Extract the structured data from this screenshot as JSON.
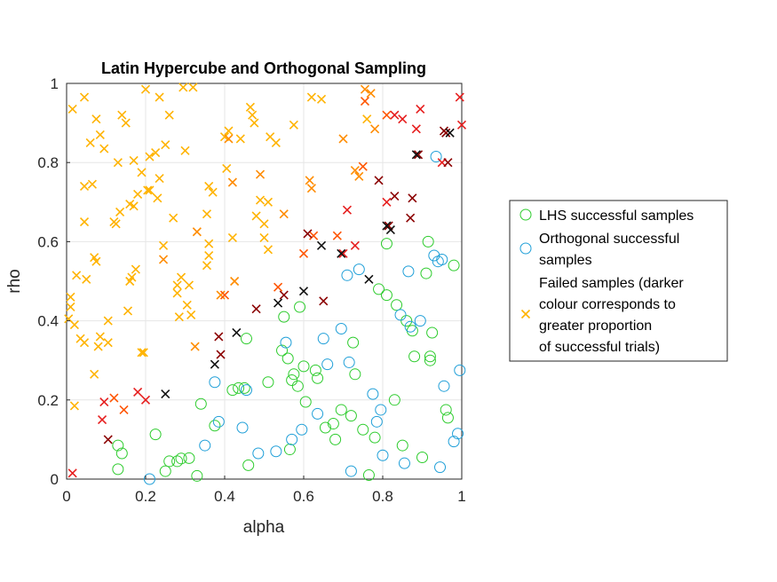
{
  "chart_data": {
    "type": "scatter",
    "title": "Latin Hypercube and Orthogonal Sampling",
    "xlabel": "alpha",
    "ylabel": "rho",
    "xlim": [
      0,
      1
    ],
    "ylim": [
      0,
      1
    ],
    "xticks": [
      0,
      0.2,
      0.4,
      0.6,
      0.8,
      1
    ],
    "yticks": [
      0,
      0.2,
      0.4,
      0.6,
      0.8,
      1
    ],
    "xtick_labels": [
      "0",
      "0.2",
      "0.4",
      "0.6",
      "0.8",
      "1"
    ],
    "ytick_labels": [
      "0",
      "0.2",
      "0.4",
      "0.6",
      "0.8",
      "1"
    ],
    "grid": true,
    "legend_position": "right",
    "legend": [
      {
        "label_lines": [
          "LHS successful samples"
        ],
        "marker": "circle",
        "color": "#2ecc2e"
      },
      {
        "label_lines": [
          "Orthogonal successful",
          "samples"
        ],
        "marker": "circle",
        "color": "#1f9fd8"
      },
      {
        "label_lines": [
          "Failed samples (darker",
          "colour corresponds to",
          "greater proportion",
          "of successful trials)"
        ],
        "marker": "x",
        "color": "#ffb300"
      }
    ],
    "series": [
      {
        "name": "LHS successful samples",
        "marker": "circle",
        "color": "#2ecc2e",
        "points": [
          [
            0.13,
            0.085
          ],
          [
            0.14,
            0.065
          ],
          [
            0.13,
            0.025
          ],
          [
            0.225,
            0.113
          ],
          [
            0.26,
            0.045
          ],
          [
            0.25,
            0.02
          ],
          [
            0.28,
            0.045
          ],
          [
            0.29,
            0.052
          ],
          [
            0.31,
            0.053
          ],
          [
            0.33,
            0.008
          ],
          [
            0.34,
            0.19
          ],
          [
            0.375,
            0.135
          ],
          [
            0.42,
            0.225
          ],
          [
            0.435,
            0.23
          ],
          [
            0.45,
            0.23
          ],
          [
            0.455,
            0.355
          ],
          [
            0.46,
            0.035
          ],
          [
            0.51,
            0.245
          ],
          [
            0.545,
            0.325
          ],
          [
            0.55,
            0.41
          ],
          [
            0.56,
            0.305
          ],
          [
            0.565,
            0.075
          ],
          [
            0.57,
            0.25
          ],
          [
            0.575,
            0.265
          ],
          [
            0.585,
            0.235
          ],
          [
            0.59,
            0.435
          ],
          [
            0.6,
            0.285
          ],
          [
            0.605,
            0.195
          ],
          [
            0.63,
            0.275
          ],
          [
            0.635,
            0.255
          ],
          [
            0.655,
            0.13
          ],
          [
            0.675,
            0.14
          ],
          [
            0.68,
            0.1
          ],
          [
            0.695,
            0.175
          ],
          [
            0.72,
            0.16
          ],
          [
            0.725,
            0.345
          ],
          [
            0.73,
            0.265
          ],
          [
            0.75,
            0.125
          ],
          [
            0.765,
            0.01
          ],
          [
            0.78,
            0.105
          ],
          [
            0.79,
            0.48
          ],
          [
            0.81,
            0.595
          ],
          [
            0.81,
            0.465
          ],
          [
            0.83,
            0.2
          ],
          [
            0.835,
            0.44
          ],
          [
            0.85,
            0.085
          ],
          [
            0.86,
            0.4
          ],
          [
            0.875,
            0.375
          ],
          [
            0.88,
            0.31
          ],
          [
            0.9,
            0.055
          ],
          [
            0.91,
            0.52
          ],
          [
            0.915,
            0.6
          ],
          [
            0.92,
            0.3
          ],
          [
            0.92,
            0.31
          ],
          [
            0.925,
            0.37
          ],
          [
            0.96,
            0.175
          ],
          [
            0.965,
            0.155
          ],
          [
            0.98,
            0.54
          ]
        ]
      },
      {
        "name": "Orthogonal successful samples",
        "marker": "circle",
        "color": "#1f9fd8",
        "points": [
          [
            0.21,
            0.0
          ],
          [
            0.35,
            0.085
          ],
          [
            0.375,
            0.245
          ],
          [
            0.385,
            0.145
          ],
          [
            0.445,
            0.13
          ],
          [
            0.455,
            0.225
          ],
          [
            0.485,
            0.065
          ],
          [
            0.53,
            0.07
          ],
          [
            0.555,
            0.345
          ],
          [
            0.57,
            0.1
          ],
          [
            0.595,
            0.125
          ],
          [
            0.635,
            0.165
          ],
          [
            0.65,
            0.355
          ],
          [
            0.66,
            0.29
          ],
          [
            0.695,
            0.38
          ],
          [
            0.71,
            0.515
          ],
          [
            0.715,
            0.295
          ],
          [
            0.72,
            0.02
          ],
          [
            0.74,
            0.53
          ],
          [
            0.775,
            0.215
          ],
          [
            0.785,
            0.145
          ],
          [
            0.795,
            0.175
          ],
          [
            0.8,
            0.06
          ],
          [
            0.845,
            0.415
          ],
          [
            0.855,
            0.04
          ],
          [
            0.865,
            0.525
          ],
          [
            0.87,
            0.385
          ],
          [
            0.895,
            0.4
          ],
          [
            0.93,
            0.565
          ],
          [
            0.935,
            0.815
          ],
          [
            0.94,
            0.55
          ],
          [
            0.945,
            0.03
          ],
          [
            0.95,
            0.555
          ],
          [
            0.955,
            0.235
          ],
          [
            0.98,
            0.095
          ],
          [
            0.99,
            0.115
          ],
          [
            0.995,
            0.275
          ]
        ]
      },
      {
        "name": "Failed samples",
        "marker": "x",
        "color": "#ffb300",
        "points": [
          [
            0.015,
            0.935
          ],
          [
            0.045,
            0.965
          ],
          [
            0.075,
            0.91
          ],
          [
            0.085,
            0.87
          ],
          [
            0.14,
            0.92
          ],
          [
            0.15,
            0.9
          ],
          [
            0.2,
            0.985
          ],
          [
            0.235,
            0.965
          ],
          [
            0.26,
            0.92
          ],
          [
            0.295,
            0.99
          ],
          [
            0.32,
            0.99
          ],
          [
            0.06,
            0.85
          ],
          [
            0.095,
            0.835
          ],
          [
            0.13,
            0.8
          ],
          [
            0.17,
            0.805
          ],
          [
            0.19,
            0.775
          ],
          [
            0.21,
            0.815
          ],
          [
            0.225,
            0.825
          ],
          [
            0.235,
            0.76
          ],
          [
            0.25,
            0.845
          ],
          [
            0.3,
            0.83
          ],
          [
            0.4,
            0.865
          ],
          [
            0.41,
            0.88
          ],
          [
            0.44,
            0.86
          ],
          [
            0.465,
            0.94
          ],
          [
            0.47,
            0.92
          ],
          [
            0.475,
            0.9
          ],
          [
            0.515,
            0.865
          ],
          [
            0.53,
            0.85
          ],
          [
            0.575,
            0.895
          ],
          [
            0.62,
            0.965
          ],
          [
            0.645,
            0.96
          ],
          [
            0.76,
            0.91
          ],
          [
            0.045,
            0.74
          ],
          [
            0.065,
            0.745
          ],
          [
            0.12,
            0.65
          ],
          [
            0.125,
            0.645
          ],
          [
            0.135,
            0.675
          ],
          [
            0.16,
            0.695
          ],
          [
            0.17,
            0.69
          ],
          [
            0.18,
            0.72
          ],
          [
            0.205,
            0.73
          ],
          [
            0.21,
            0.73
          ],
          [
            0.23,
            0.71
          ],
          [
            0.27,
            0.66
          ],
          [
            0.36,
            0.74
          ],
          [
            0.37,
            0.725
          ],
          [
            0.405,
            0.785
          ],
          [
            0.48,
            0.665
          ],
          [
            0.49,
            0.705
          ],
          [
            0.5,
            0.645
          ],
          [
            0.51,
            0.7
          ],
          [
            0.045,
            0.65
          ],
          [
            0.07,
            0.56
          ],
          [
            0.075,
            0.55
          ],
          [
            0.245,
            0.59
          ],
          [
            0.355,
            0.67
          ],
          [
            0.36,
            0.595
          ],
          [
            0.42,
            0.61
          ],
          [
            0.5,
            0.61
          ],
          [
            0.51,
            0.58
          ],
          [
            0.01,
            0.46
          ],
          [
            0.01,
            0.435
          ],
          [
            0.025,
            0.515
          ],
          [
            0.05,
            0.505
          ],
          [
            0.16,
            0.5
          ],
          [
            0.165,
            0.51
          ],
          [
            0.175,
            0.53
          ],
          [
            0.28,
            0.49
          ],
          [
            0.29,
            0.51
          ],
          [
            0.28,
            0.47
          ],
          [
            0.305,
            0.44
          ],
          [
            0.31,
            0.49
          ],
          [
            0.355,
            0.54
          ],
          [
            0.36,
            0.565
          ],
          [
            0.005,
            0.405
          ],
          [
            0.02,
            0.39
          ],
          [
            0.035,
            0.355
          ],
          [
            0.045,
            0.345
          ],
          [
            0.08,
            0.335
          ],
          [
            0.085,
            0.36
          ],
          [
            0.105,
            0.345
          ],
          [
            0.105,
            0.4
          ],
          [
            0.155,
            0.425
          ],
          [
            0.19,
            0.32
          ],
          [
            0.195,
            0.32
          ],
          [
            0.285,
            0.41
          ],
          [
            0.315,
            0.415
          ],
          [
            0.07,
            0.265
          ],
          [
            0.02,
            0.185
          ]
        ]
      },
      {
        "name": "Failed samples (orange)",
        "marker": "x",
        "color": "#ff8c00",
        "points": [
          [
            0.245,
            0.555
          ],
          [
            0.33,
            0.625
          ],
          [
            0.39,
            0.465
          ],
          [
            0.41,
            0.86
          ],
          [
            0.42,
            0.75
          ],
          [
            0.49,
            0.77
          ],
          [
            0.55,
            0.67
          ],
          [
            0.62,
            0.735
          ],
          [
            0.615,
            0.755
          ],
          [
            0.7,
            0.86
          ],
          [
            0.73,
            0.78
          ],
          [
            0.74,
            0.765
          ],
          [
            0.755,
            0.985
          ],
          [
            0.77,
            0.975
          ],
          [
            0.78,
            0.885
          ],
          [
            0.425,
            0.5
          ],
          [
            0.325,
            0.335
          ]
        ]
      },
      {
        "name": "Failed samples (orange-red)",
        "marker": "x",
        "color": "#ff5500",
        "points": [
          [
            0.75,
            0.79
          ],
          [
            0.755,
            0.955
          ],
          [
            0.81,
            0.92
          ],
          [
            0.12,
            0.205
          ],
          [
            0.145,
            0.175
          ],
          [
            0.4,
            0.465
          ],
          [
            0.535,
            0.485
          ],
          [
            0.6,
            0.57
          ],
          [
            0.625,
            0.615
          ],
          [
            0.685,
            0.615
          ]
        ]
      },
      {
        "name": "Failed samples (red)",
        "marker": "x",
        "color": "#e61e1e",
        "points": [
          [
            0.015,
            0.015
          ],
          [
            0.09,
            0.15
          ],
          [
            0.095,
            0.195
          ],
          [
            0.18,
            0.22
          ],
          [
            0.2,
            0.2
          ],
          [
            0.7,
            0.57
          ],
          [
            0.71,
            0.68
          ],
          [
            0.73,
            0.59
          ],
          [
            0.81,
            0.7
          ],
          [
            0.83,
            0.92
          ],
          [
            0.85,
            0.91
          ],
          [
            0.885,
            0.885
          ],
          [
            0.895,
            0.935
          ],
          [
            0.95,
            0.8
          ],
          [
            0.995,
            0.965
          ],
          [
            1.0,
            0.895
          ]
        ]
      },
      {
        "name": "Failed samples (dark red)",
        "marker": "x",
        "color": "#8b0000",
        "points": [
          [
            0.105,
            0.1
          ],
          [
            0.39,
            0.315
          ],
          [
            0.48,
            0.43
          ],
          [
            0.55,
            0.465
          ],
          [
            0.61,
            0.62
          ],
          [
            0.65,
            0.45
          ],
          [
            0.79,
            0.755
          ],
          [
            0.815,
            0.64
          ],
          [
            0.83,
            0.715
          ],
          [
            0.87,
            0.66
          ],
          [
            0.875,
            0.71
          ],
          [
            0.89,
            0.82
          ],
          [
            0.96,
            0.875
          ],
          [
            0.965,
            0.8
          ],
          [
            0.955,
            0.88
          ],
          [
            0.385,
            0.36
          ]
        ]
      },
      {
        "name": "Failed samples (black)",
        "marker": "x",
        "color": "#111111",
        "points": [
          [
            0.25,
            0.215
          ],
          [
            0.375,
            0.29
          ],
          [
            0.43,
            0.37
          ],
          [
            0.535,
            0.445
          ],
          [
            0.6,
            0.475
          ],
          [
            0.645,
            0.59
          ],
          [
            0.695,
            0.57
          ],
          [
            0.765,
            0.505
          ],
          [
            0.81,
            0.64
          ],
          [
            0.82,
            0.63
          ],
          [
            0.885,
            0.82
          ],
          [
            0.97,
            0.875
          ]
        ]
      }
    ]
  }
}
